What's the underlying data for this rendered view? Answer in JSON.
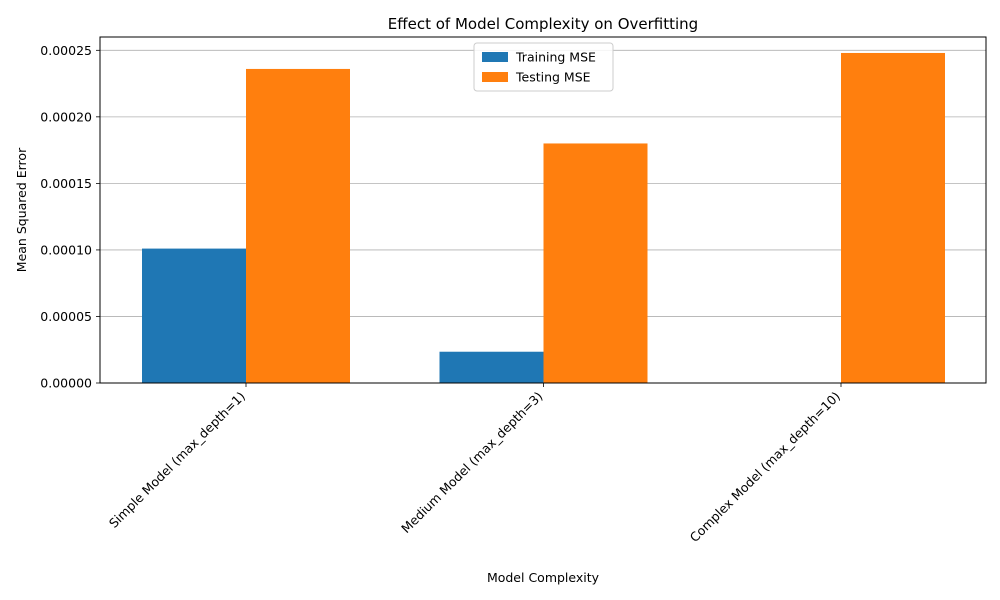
{
  "chart_data": {
    "type": "bar",
    "title": "Effect of Model Complexity on Overfitting",
    "xlabel": "Model Complexity",
    "ylabel": "Mean Squared Error",
    "categories": [
      "Simple Model (max_depth=1)",
      "Medium Model (max_depth=3)",
      "Complex Model (max_depth=10)"
    ],
    "series": [
      {
        "name": "Training MSE",
        "color": "#1f77b4",
        "values": [
          0.000101,
          2.35e-05,
          0.0
        ]
      },
      {
        "name": "Testing MSE",
        "color": "#ff7f0e",
        "values": [
          0.000236,
          0.00018,
          0.000248
        ]
      }
    ],
    "ylim": [
      0,
      0.00026
    ],
    "yticks": [
      0,
      5e-05,
      0.0001,
      0.00015,
      0.0002,
      0.00025
    ],
    "ytick_labels": [
      "0.00000",
      "0.00005",
      "0.00010",
      "0.00015",
      "0.00020",
      "0.00025"
    ],
    "grid": "y",
    "legend_position": "top-center"
  }
}
